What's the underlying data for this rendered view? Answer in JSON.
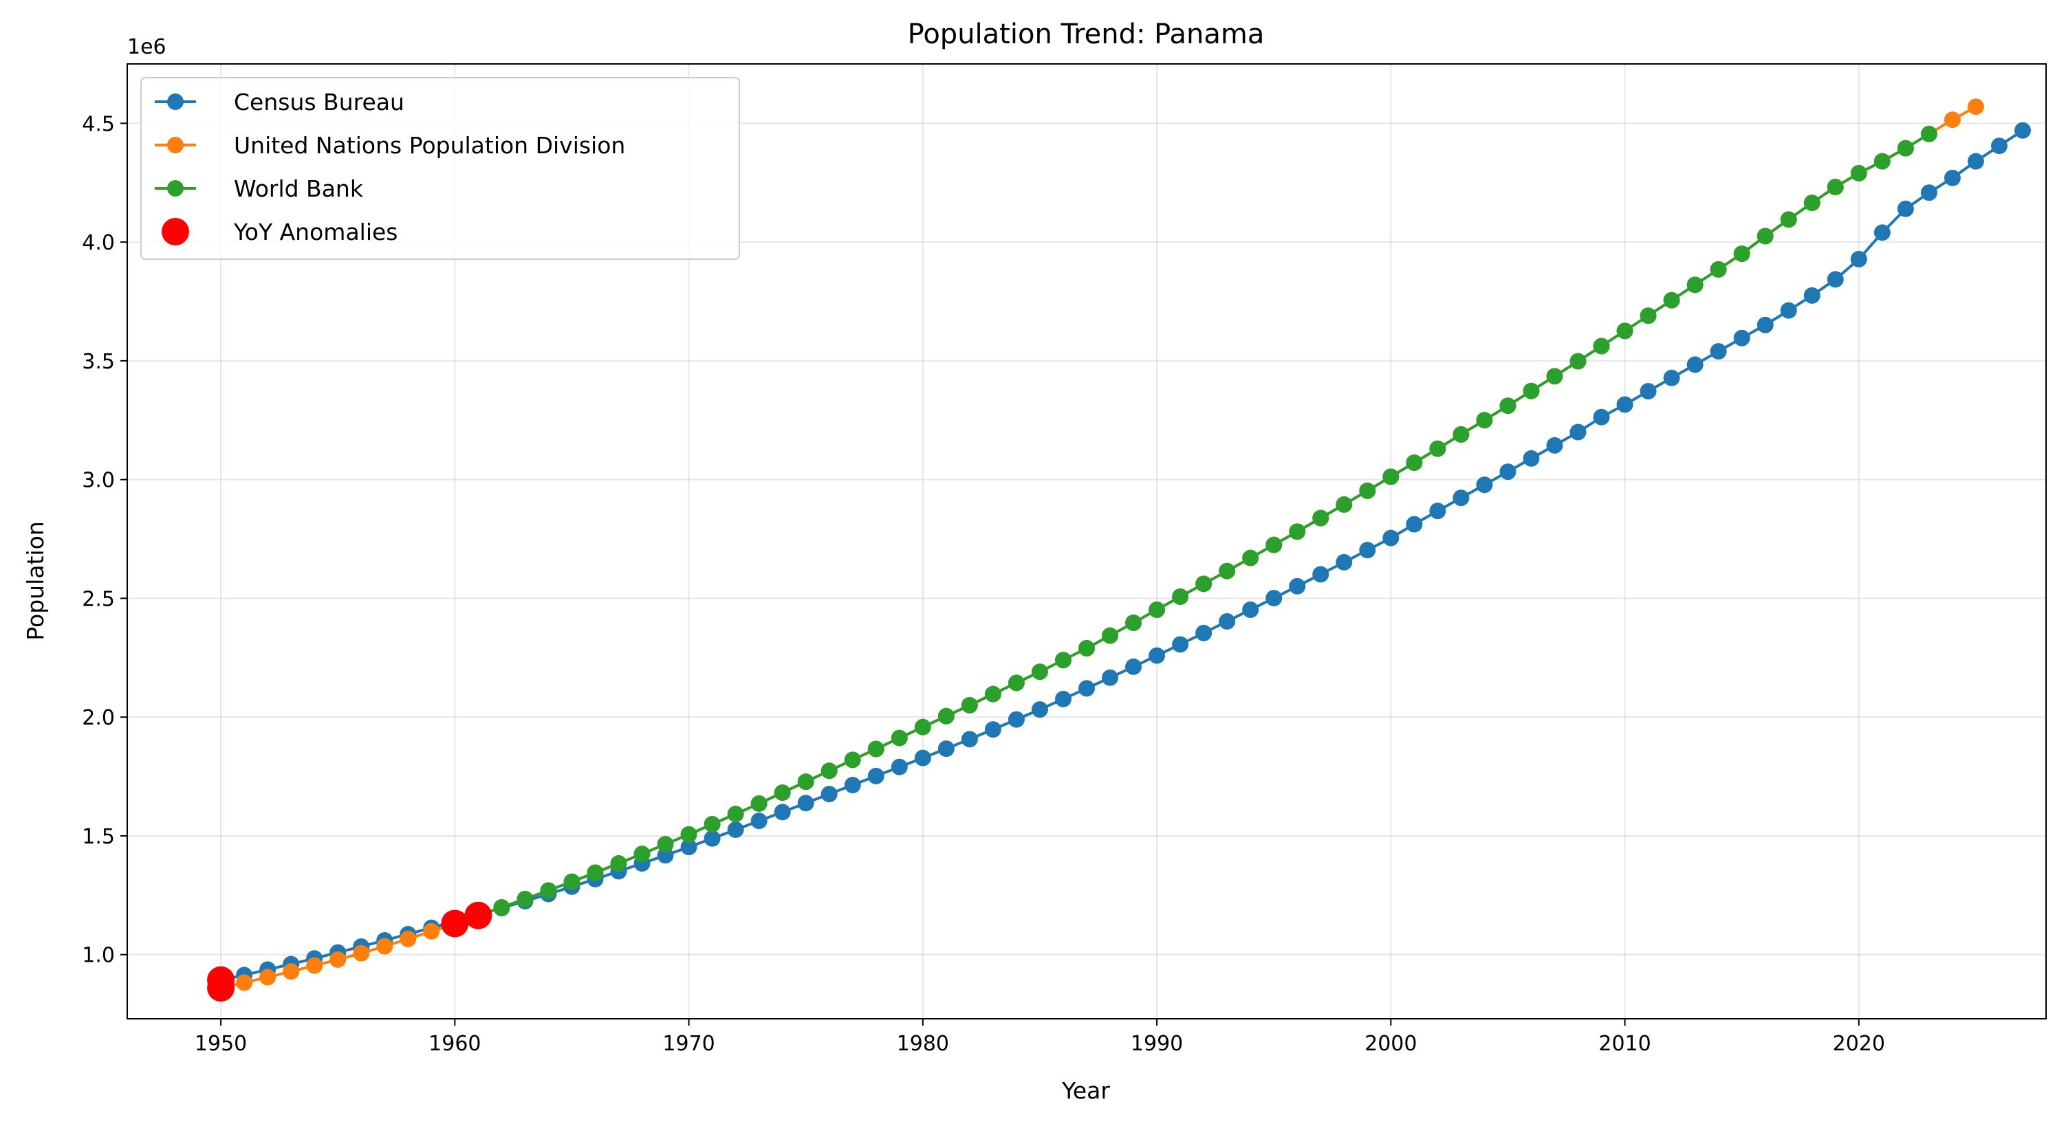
{
  "chart_data": {
    "type": "line",
    "title": "Population Trend: Panama",
    "xlabel": "Year",
    "ylabel": "Population",
    "y_offset_label": "1e6",
    "xlim": [
      1946,
      2028
    ],
    "ylim": [
      0.73,
      4.75
    ],
    "x_ticks": [
      1950,
      1960,
      1970,
      1980,
      1990,
      2000,
      2010,
      2020
    ],
    "y_ticks": [
      1.0,
      1.5,
      2.0,
      2.5,
      3.0,
      3.5,
      4.0,
      4.5
    ],
    "y_tick_labels": [
      "1.0",
      "1.5",
      "2.0",
      "2.5",
      "3.0",
      "3.5",
      "4.0",
      "4.5"
    ],
    "grid": true,
    "legend_position": "top-left",
    "series": [
      {
        "name": "Census Bureau",
        "color": "#1f77b4",
        "x_start": 1950,
        "values": [
          0.893,
          0.914,
          0.937,
          0.96,
          0.984,
          1.009,
          1.034,
          1.06,
          1.086,
          1.113,
          1.14,
          1.168,
          1.196,
          1.225,
          1.255,
          1.286,
          1.318,
          1.351,
          1.384,
          1.418,
          1.453,
          1.489,
          1.526,
          1.563,
          1.6,
          1.638,
          1.676,
          1.714,
          1.752,
          1.79,
          1.828,
          1.867,
          1.907,
          1.948,
          1.99,
          2.032,
          2.076,
          2.121,
          2.166,
          2.212,
          2.259,
          2.306,
          2.354,
          2.403,
          2.452,
          2.501,
          2.551,
          2.601,
          2.652,
          2.703,
          2.754,
          2.812,
          2.868,
          2.923,
          2.978,
          3.033,
          3.089,
          3.144,
          3.2,
          3.263,
          3.316,
          3.372,
          3.428,
          3.484,
          3.54,
          3.596,
          3.651,
          3.712,
          3.775,
          3.843,
          3.928,
          4.04,
          4.14,
          4.208,
          4.27,
          4.34,
          4.405,
          4.47
        ]
      },
      {
        "name": "United Nations Population Division",
        "color": "#ff7f0e",
        "x_start": 1950,
        "values": [
          0.86,
          0.882,
          0.905,
          0.929,
          0.954,
          0.979,
          1.006,
          1.035,
          1.066,
          1.098,
          1.131,
          1.165,
          1.199,
          1.234,
          1.27,
          1.307,
          1.345,
          1.384,
          1.424,
          1.465,
          1.506,
          1.549,
          1.592,
          1.636,
          1.682,
          1.728,
          1.774,
          1.82,
          1.866,
          1.912,
          1.958,
          2.004,
          2.05,
          2.097,
          2.144,
          2.191,
          2.24,
          2.29,
          2.343,
          2.397,
          2.452,
          2.507,
          2.561,
          2.615,
          2.67,
          2.725,
          2.781,
          2.838,
          2.895,
          2.953,
          3.012,
          3.071,
          3.13,
          3.19,
          3.25,
          3.311,
          3.373,
          3.435,
          3.498,
          3.562,
          3.626,
          3.69,
          3.755,
          3.82,
          3.885,
          3.951,
          4.025,
          4.095,
          4.165,
          4.232,
          4.29,
          4.34,
          4.395,
          4.455,
          4.515,
          4.57
        ]
      },
      {
        "name": "World Bank",
        "color": "#2ca02c",
        "x_start": 1960,
        "values": [
          1.131,
          1.165,
          1.199,
          1.234,
          1.27,
          1.307,
          1.345,
          1.384,
          1.424,
          1.465,
          1.506,
          1.549,
          1.592,
          1.636,
          1.682,
          1.728,
          1.774,
          1.82,
          1.866,
          1.912,
          1.958,
          2.004,
          2.05,
          2.097,
          2.144,
          2.191,
          2.24,
          2.29,
          2.343,
          2.397,
          2.452,
          2.507,
          2.561,
          2.615,
          2.67,
          2.725,
          2.781,
          2.838,
          2.895,
          2.953,
          3.012,
          3.071,
          3.13,
          3.19,
          3.25,
          3.311,
          3.373,
          3.435,
          3.498,
          3.562,
          3.626,
          3.69,
          3.755,
          3.82,
          3.885,
          3.951,
          4.025,
          4.095,
          4.165,
          4.232,
          4.29,
          4.34,
          4.395,
          4.455
        ]
      }
    ],
    "anomalies": {
      "name": "YoY Anomalies",
      "color": "#ff0000",
      "points": [
        {
          "x": 1950,
          "y": 0.893
        },
        {
          "x": 1950,
          "y": 0.86
        },
        {
          "x": 1960,
          "y": 1.131
        },
        {
          "x": 1961,
          "y": 1.165
        }
      ]
    }
  }
}
